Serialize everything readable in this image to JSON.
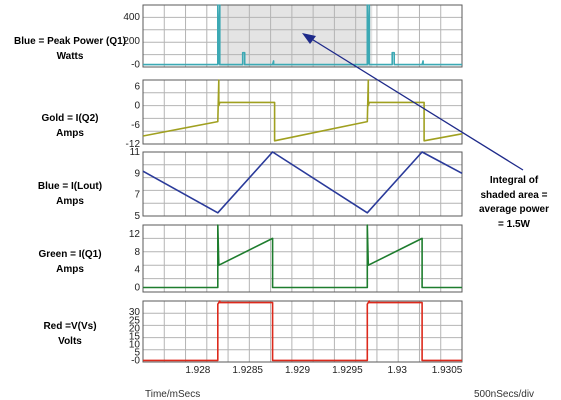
{
  "chart_data": {
    "type": "line",
    "x": {
      "range": [
        1.92745,
        1.93065
      ],
      "ticks": [
        1.928,
        1.9285,
        1.929,
        1.9295,
        1.93,
        1.9305
      ],
      "tick_labels": [
        "1.928",
        "1.9285",
        "1.929",
        "1.9295",
        "1.93",
        "1.9305"
      ]
    },
    "x_caption": "Time/mSecs",
    "timebase": "500nSecs/div",
    "grid": true,
    "panels": [
      {
        "key": "power",
        "label_lines": [
          "Blue = Peak Power (Q1)",
          "Watts"
        ],
        "color": "#3ca9b4",
        "ylim": [
          -20,
          500
        ],
        "y_ticks": [
          0,
          200,
          400
        ],
        "y_tick_labels": [
          "-0",
          "200",
          "400"
        ],
        "shaded_x": [
          1.92821,
          1.92975
        ],
        "series": [
          {
            "x": [
              1.92745,
              1.9282,
              1.9282,
              1.92821,
              1.92822,
              1.92822,
              1.92845,
              1.92845,
              1.92846,
              1.92847,
              1.92847,
              1.9287,
              1.92875,
              1.92876,
              1.92876,
              1.9297,
              1.9297,
              1.92971,
              1.92972,
              1.92972,
              1.92995,
              1.92995,
              1.92996,
              1.92997,
              1.92997,
              1.9302,
              1.93025,
              1.93026,
              1.93026,
              1.93065
            ],
            "y": [
              0,
              0,
              500,
              10,
              500,
              0,
              0,
              100,
              100,
              100,
              0,
              0,
              0,
              30,
              0,
              0,
              500,
              10,
              500,
              0,
              0,
              100,
              100,
              100,
              0,
              0,
              0,
              30,
              0,
              0
            ]
          }
        ]
      },
      {
        "key": "iq2",
        "label_lines": [
          "Gold = I(Q2)",
          "Amps"
        ],
        "color": "#a0a020",
        "ylim": [
          -12,
          8
        ],
        "y_ticks": [
          -12,
          -6,
          0,
          6
        ],
        "y_tick_labels": [
          "-12",
          "-6",
          "0",
          "6"
        ],
        "series": [
          {
            "x": [
              1.92745,
              1.9282,
              1.9282,
              1.92821,
              1.92821,
              1.92822,
              1.92822,
              1.92877,
              1.92877,
              1.9297,
              1.9297,
              1.92971,
              1.92971,
              1.92972,
              1.92972,
              1.93027,
              1.93027,
              1.93065
            ],
            "y": [
              -9.5,
              -5,
              -5,
              8,
              0,
              1,
              1,
              1,
              -11,
              -5,
              -5,
              8,
              0,
              1,
              1,
              1,
              -11,
              -8.8
            ]
          }
        ]
      },
      {
        "key": "ilout",
        "label_lines": [
          "Blue = I(Lout)",
          "Amps"
        ],
        "color": "#2a3a9a",
        "ylim": [
          5,
          11
        ],
        "y_ticks": [
          5,
          7,
          9,
          11
        ],
        "y_tick_labels": [
          "5",
          "7",
          "9",
          "11"
        ],
        "series": [
          {
            "x": [
              1.92745,
              1.9282,
              1.92875,
              1.9297,
              1.93025,
              1.93065
            ],
            "y": [
              9.2,
              5.3,
              11,
              5.3,
              11,
              9
            ]
          }
        ]
      },
      {
        "key": "iq1",
        "label_lines": [
          "Green = I(Q1)",
          "Amps"
        ],
        "color": "#1e7d2e",
        "ylim": [
          -1,
          14
        ],
        "y_ticks": [
          0,
          4,
          8,
          12
        ],
        "y_tick_labels": [
          "0",
          "4",
          "8",
          "12"
        ],
        "series": [
          {
            "x": [
              1.92745,
              1.9282,
              1.9282,
              1.92821,
              1.92821,
              1.92875,
              1.92875,
              1.9297,
              1.9297,
              1.92971,
              1.92971,
              1.93025,
              1.93025,
              1.93065
            ],
            "y": [
              0,
              0,
              14,
              5,
              5,
              11,
              0,
              0,
              14,
              5,
              5,
              11,
              0,
              0
            ]
          }
        ]
      },
      {
        "key": "vvs",
        "label_lines": [
          "Red =V(Vs)",
          "Volts"
        ],
        "color": "#dd2a1c",
        "ylim": [
          -1,
          37
        ],
        "y_ticks": [
          0,
          5,
          10,
          15,
          20,
          25,
          30
        ],
        "y_tick_labels": [
          "-0",
          "5",
          "10",
          "15",
          "20",
          "25",
          "30"
        ],
        "series": [
          {
            "x": [
              1.92745,
              1.9282,
              1.9282,
              1.92822,
              1.92822,
              1.92875,
              1.92875,
              1.9297,
              1.9297,
              1.92972,
              1.92972,
              1.93025,
              1.93025,
              1.93065
            ],
            "y": [
              0,
              0,
              35,
              37,
              36,
              36,
              0,
              0,
              35,
              37,
              36,
              36,
              0,
              0
            ]
          }
        ]
      }
    ],
    "annotation": {
      "lines": [
        "Integral of",
        "shaded area =",
        "average power",
        "= 1.5W"
      ],
      "arrow_color": "#1e2a8a"
    }
  }
}
